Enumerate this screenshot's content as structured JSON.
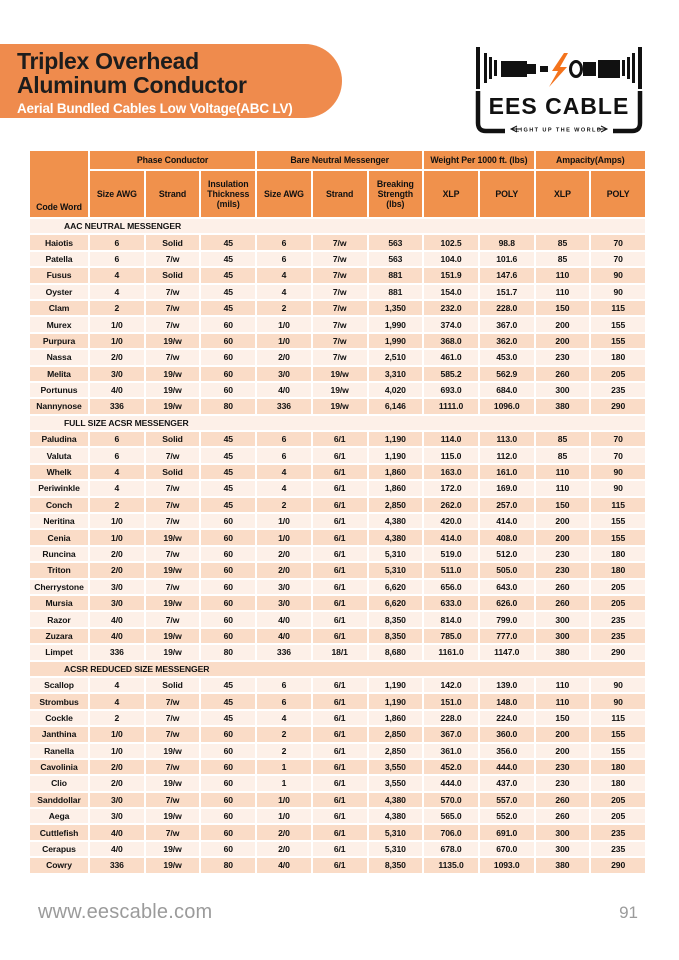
{
  "header": {
    "title_line1": "Triplex Overhead",
    "title_line2": "Aluminum Conductor",
    "subtitle": "Aerial Bundled Cables Low Voltage(ABC LV)",
    "banner_color": "#EF8B4D"
  },
  "logo": {
    "name": "EES CABLE",
    "tagline": "LIGHT UP THE WORLD",
    "bolt_color": "#F4731C"
  },
  "table": {
    "header_color": "#F0914C",
    "row_color_dark": "#FADCC7",
    "row_color_light": "#FDF0E8",
    "col_groups": [
      {
        "label": "Phase Conductor",
        "span": 3
      },
      {
        "label": "Bare Neutral Messenger",
        "span": 3
      },
      {
        "label": "Weight Per 1000 ft. (lbs)",
        "span": 2
      },
      {
        "label": "Ampacity(Amps)",
        "span": 2
      }
    ],
    "corner_label": "Code Word",
    "columns": [
      "Size AWG",
      "Strand",
      "Insulation Thickness (mils)",
      "Size AWG",
      "Strand",
      "Breaking Strength (lbs)",
      "XLP",
      "POLY",
      "XLP",
      "POLY"
    ],
    "sections": [
      {
        "label": "AAC NEUTRAL MESSENGER",
        "rows": [
          [
            "Haiotis",
            "6",
            "Solid",
            "45",
            "6",
            "7/w",
            "563",
            "102.5",
            "98.8",
            "85",
            "70"
          ],
          [
            "Patella",
            "6",
            "7/w",
            "45",
            "6",
            "7/w",
            "563",
            "104.0",
            "101.6",
            "85",
            "70"
          ],
          [
            "Fusus",
            "4",
            "Solid",
            "45",
            "4",
            "7/w",
            "881",
            "151.9",
            "147.6",
            "110",
            "90"
          ],
          [
            "Oyster",
            "4",
            "7/w",
            "45",
            "4",
            "7/w",
            "881",
            "154.0",
            "151.7",
            "110",
            "90"
          ],
          [
            "Clam",
            "2",
            "7/w",
            "45",
            "2",
            "7/w",
            "1,350",
            "232.0",
            "228.0",
            "150",
            "115"
          ],
          [
            "Murex",
            "1/0",
            "7/w",
            "60",
            "1/0",
            "7/w",
            "1,990",
            "374.0",
            "367.0",
            "200",
            "155"
          ],
          [
            "Purpura",
            "1/0",
            "19/w",
            "60",
            "1/0",
            "7/w",
            "1,990",
            "368.0",
            "362.0",
            "200",
            "155"
          ],
          [
            "Nassa",
            "2/0",
            "7/w",
            "60",
            "2/0",
            "7/w",
            "2,510",
            "461.0",
            "453.0",
            "230",
            "180"
          ],
          [
            "Melita",
            "3/0",
            "19/w",
            "60",
            "3/0",
            "19/w",
            "3,310",
            "585.2",
            "562.9",
            "260",
            "205"
          ],
          [
            "Portunus",
            "4/0",
            "19/w",
            "60",
            "4/0",
            "19/w",
            "4,020",
            "693.0",
            "684.0",
            "300",
            "235"
          ],
          [
            "Nannynose",
            "336",
            "19/w",
            "80",
            "336",
            "19/w",
            "6,146",
            "1111.0",
            "1096.0",
            "380",
            "290"
          ]
        ]
      },
      {
        "label": "FULL SIZE ACSR MESSENGER",
        "rows": [
          [
            "Paludina",
            "6",
            "Solid",
            "45",
            "6",
            "6/1",
            "1,190",
            "114.0",
            "113.0",
            "85",
            "70"
          ],
          [
            "Valuta",
            "6",
            "7/w",
            "45",
            "6",
            "6/1",
            "1,190",
            "115.0",
            "112.0",
            "85",
            "70"
          ],
          [
            "Whelk",
            "4",
            "Solid",
            "45",
            "4",
            "6/1",
            "1,860",
            "163.0",
            "161.0",
            "110",
            "90"
          ],
          [
            "Periwinkle",
            "4",
            "7/w",
            "45",
            "4",
            "6/1",
            "1,860",
            "172.0",
            "169.0",
            "110",
            "90"
          ],
          [
            "Conch",
            "2",
            "7/w",
            "45",
            "2",
            "6/1",
            "2,850",
            "262.0",
            "257.0",
            "150",
            "115"
          ],
          [
            "Neritina",
            "1/0",
            "7/w",
            "60",
            "1/0",
            "6/1",
            "4,380",
            "420.0",
            "414.0",
            "200",
            "155"
          ],
          [
            "Cenia",
            "1/0",
            "19/w",
            "60",
            "1/0",
            "6/1",
            "4,380",
            "414.0",
            "408.0",
            "200",
            "155"
          ],
          [
            "Runcina",
            "2/0",
            "7/w",
            "60",
            "2/0",
            "6/1",
            "5,310",
            "519.0",
            "512.0",
            "230",
            "180"
          ],
          [
            "Triton",
            "2/0",
            "19/w",
            "60",
            "2/0",
            "6/1",
            "5,310",
            "511.0",
            "505.0",
            "230",
            "180"
          ],
          [
            "Cherrystone",
            "3/0",
            "7/w",
            "60",
            "3/0",
            "6/1",
            "6,620",
            "656.0",
            "643.0",
            "260",
            "205"
          ],
          [
            "Mursia",
            "3/0",
            "19/w",
            "60",
            "3/0",
            "6/1",
            "6,620",
            "633.0",
            "626.0",
            "260",
            "205"
          ],
          [
            "Razor",
            "4/0",
            "7/w",
            "60",
            "4/0",
            "6/1",
            "8,350",
            "814.0",
            "799.0",
            "300",
            "235"
          ],
          [
            "Zuzara",
            "4/0",
            "19/w",
            "60",
            "4/0",
            "6/1",
            "8,350",
            "785.0",
            "777.0",
            "300",
            "235"
          ],
          [
            "Limpet",
            "336",
            "19/w",
            "80",
            "336",
            "18/1",
            "8,680",
            "1161.0",
            "1147.0",
            "380",
            "290"
          ]
        ]
      },
      {
        "label": "ACSR REDUCED SIZE MESSENGER",
        "rows": [
          [
            "Scallop",
            "4",
            "Solid",
            "45",
            "6",
            "6/1",
            "1,190",
            "142.0",
            "139.0",
            "110",
            "90"
          ],
          [
            "Strombus",
            "4",
            "7/w",
            "45",
            "6",
            "6/1",
            "1,190",
            "151.0",
            "148.0",
            "110",
            "90"
          ],
          [
            "Cockle",
            "2",
            "7/w",
            "45",
            "4",
            "6/1",
            "1,860",
            "228.0",
            "224.0",
            "150",
            "115"
          ],
          [
            "Janthina",
            "1/0",
            "7/w",
            "60",
            "2",
            "6/1",
            "2,850",
            "367.0",
            "360.0",
            "200",
            "155"
          ],
          [
            "Ranella",
            "1/0",
            "19/w",
            "60",
            "2",
            "6/1",
            "2,850",
            "361.0",
            "356.0",
            "200",
            "155"
          ],
          [
            "Cavolinia",
            "2/0",
            "7/w",
            "60",
            "1",
            "6/1",
            "3,550",
            "452.0",
            "444.0",
            "230",
            "180"
          ],
          [
            "Clio",
            "2/0",
            "19/w",
            "60",
            "1",
            "6/1",
            "3,550",
            "444.0",
            "437.0",
            "230",
            "180"
          ],
          [
            "Sanddollar",
            "3/0",
            "7/w",
            "60",
            "1/0",
            "6/1",
            "4,380",
            "570.0",
            "557.0",
            "260",
            "205"
          ],
          [
            "Aega",
            "3/0",
            "19/w",
            "60",
            "1/0",
            "6/1",
            "4,380",
            "565.0",
            "552.0",
            "260",
            "205"
          ],
          [
            "Cuttlefish",
            "4/0",
            "7/w",
            "60",
            "2/0",
            "6/1",
            "5,310",
            "706.0",
            "691.0",
            "300",
            "235"
          ],
          [
            "Cerapus",
            "4/0",
            "19/w",
            "60",
            "2/0",
            "6/1",
            "5,310",
            "678.0",
            "670.0",
            "300",
            "235"
          ],
          [
            "Cowry",
            "336",
            "19/w",
            "80",
            "4/0",
            "6/1",
            "8,350",
            "1135.0",
            "1093.0",
            "380",
            "290"
          ]
        ]
      }
    ]
  },
  "footer": {
    "website": "www.eescable.com",
    "page_number": "91"
  }
}
